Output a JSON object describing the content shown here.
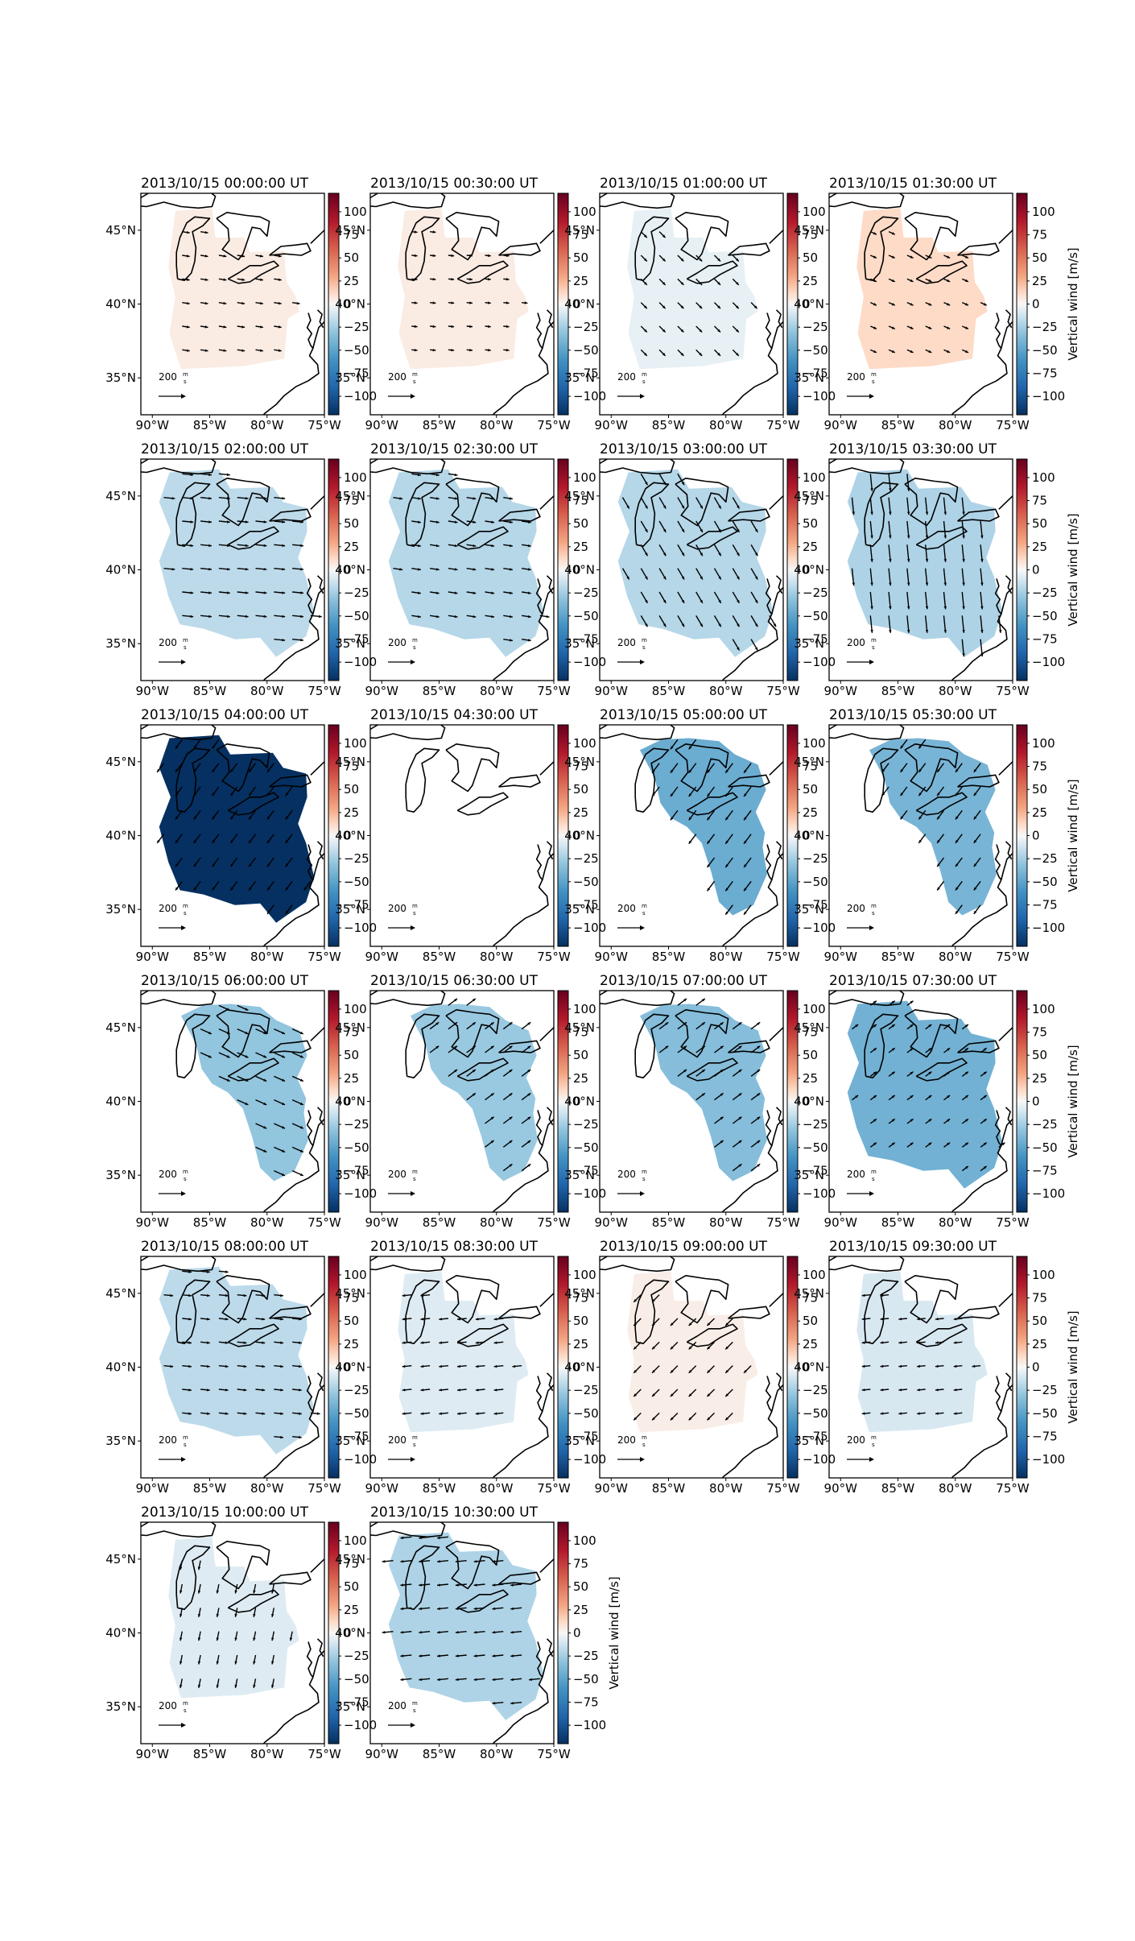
{
  "figure": {
    "arrow_key_label": "200",
    "arrow_key_unit_num": "m",
    "arrow_key_unit_den": "s",
    "colorbar_label": "Vertical wind [m/s]",
    "colorbar_ticks": [
      "100",
      "75",
      "50",
      "25",
      "0",
      "−25",
      "−50",
      "−75",
      "−100"
    ],
    "lon_ticks": [
      "90°W",
      "85°W",
      "80°W",
      "75°W"
    ],
    "lat_ticks": [
      "45°N",
      "40°N",
      "35°N"
    ]
  },
  "chart_data": {
    "type": "heatmap",
    "description_units": "vertical wind m/s",
    "colormap": "RdBu_r",
    "vmin": -120,
    "vmax": 120,
    "x_range_deg": [
      -91,
      -75
    ],
    "y_range_deg": [
      32.5,
      47.5
    ],
    "panels": [
      {
        "title": "2013/10/15 00:00:00 UT",
        "value": 5,
        "extent": "base",
        "arrow_len": 0.25,
        "arrow_dir": [
          1,
          0.15
        ],
        "show_cbar_label": false
      },
      {
        "title": "2013/10/15 00:30:00 UT",
        "value": 5,
        "extent": "base",
        "arrow_len": 0.15,
        "arrow_dir": [
          1,
          0.1
        ],
        "show_cbar_label": false
      },
      {
        "title": "2013/10/15 01:00:00 UT",
        "value": -5,
        "extent": "base",
        "arrow_len": 0.3,
        "arrow_dir": [
          0.7,
          0.7
        ],
        "show_cbar_label": false
      },
      {
        "title": "2013/10/15 01:30:00 UT",
        "value": 12,
        "extent": "base",
        "arrow_len": 0.2,
        "arrow_dir": [
          0.9,
          0.4
        ],
        "show_cbar_label": true
      },
      {
        "title": "2013/10/15 02:00:00 UT",
        "value": -18,
        "extent": "wide",
        "arrow_len": 0.45,
        "arrow_dir": [
          1,
          0.1
        ],
        "show_cbar_label": false
      },
      {
        "title": "2013/10/15 02:30:00 UT",
        "value": -20,
        "extent": "wide",
        "arrow_len": 0.35,
        "arrow_dir": [
          1,
          0.15
        ],
        "show_cbar_label": false
      },
      {
        "title": "2013/10/15 03:00:00 UT",
        "value": -20,
        "extent": "wide",
        "arrow_len": 0.55,
        "arrow_dir": [
          0.5,
          0.85
        ],
        "show_cbar_label": false
      },
      {
        "title": "2013/10/15 03:30:00 UT",
        "value": -22,
        "extent": "wide",
        "arrow_len": 0.8,
        "arrow_dir": [
          0.1,
          1
        ],
        "show_cbar_label": true
      },
      {
        "title": "2013/10/15 04:00:00 UT",
        "value": -120,
        "extent": "wide",
        "arrow_len": 0.45,
        "arrow_dir": [
          -0.6,
          0.8
        ],
        "show_cbar_label": false
      },
      {
        "title": "2013/10/15 04:30:00 UT",
        "value": 0,
        "extent": "none",
        "arrow_len": 0,
        "arrow_dir": [
          1,
          0
        ],
        "show_cbar_label": false
      },
      {
        "title": "2013/10/15 05:00:00 UT",
        "value": -45,
        "extent": "east",
        "arrow_len": 0.5,
        "arrow_dir": [
          -0.6,
          0.8
        ],
        "show_cbar_label": false
      },
      {
        "title": "2013/10/15 05:30:00 UT",
        "value": -40,
        "extent": "east",
        "arrow_len": 0.45,
        "arrow_dir": [
          -0.6,
          0.8
        ],
        "show_cbar_label": true
      },
      {
        "title": "2013/10/15 06:00:00 UT",
        "value": -30,
        "extent": "east",
        "arrow_len": 0.5,
        "arrow_dir": [
          0.9,
          0.4
        ],
        "show_cbar_label": false
      },
      {
        "title": "2013/10/15 06:30:00 UT",
        "value": -28,
        "extent": "east",
        "arrow_len": 0.45,
        "arrow_dir": [
          0.8,
          -0.6
        ],
        "show_cbar_label": false
      },
      {
        "title": "2013/10/15 07:00:00 UT",
        "value": -35,
        "extent": "east",
        "arrow_len": 0.45,
        "arrow_dir": [
          0.8,
          -0.6
        ],
        "show_cbar_label": false
      },
      {
        "title": "2013/10/15 07:30:00 UT",
        "value": -42,
        "extent": "wide",
        "arrow_len": 0.25,
        "arrow_dir": [
          0.8,
          -0.6
        ],
        "show_cbar_label": true
      },
      {
        "title": "2013/10/15 08:00:00 UT",
        "value": -18,
        "extent": "wide",
        "arrow_len": 0.35,
        "arrow_dir": [
          1,
          0.1
        ],
        "show_cbar_label": false
      },
      {
        "title": "2013/10/15 08:30:00 UT",
        "value": -8,
        "extent": "base",
        "arrow_len": 0.35,
        "arrow_dir": [
          -1,
          0.1
        ],
        "show_cbar_label": false
      },
      {
        "title": "2013/10/15 09:00:00 UT",
        "value": 4,
        "extent": "base",
        "arrow_len": 0.4,
        "arrow_dir": [
          -0.7,
          0.7
        ],
        "show_cbar_label": false
      },
      {
        "title": "2013/10/15 09:30:00 UT",
        "value": -10,
        "extent": "base",
        "arrow_len": 0.3,
        "arrow_dir": [
          -1,
          0.1
        ],
        "show_cbar_label": true
      },
      {
        "title": "2013/10/15 10:00:00 UT",
        "value": -8,
        "extent": "base",
        "arrow_len": 0.35,
        "arrow_dir": [
          -0.2,
          1
        ],
        "show_cbar_label": false
      },
      {
        "title": "2013/10/15 10:30:00 UT",
        "value": -22,
        "extent": "wide",
        "arrow_len": 0.45,
        "arrow_dir": [
          -1,
          0.1
        ],
        "show_cbar_label": true
      }
    ]
  }
}
